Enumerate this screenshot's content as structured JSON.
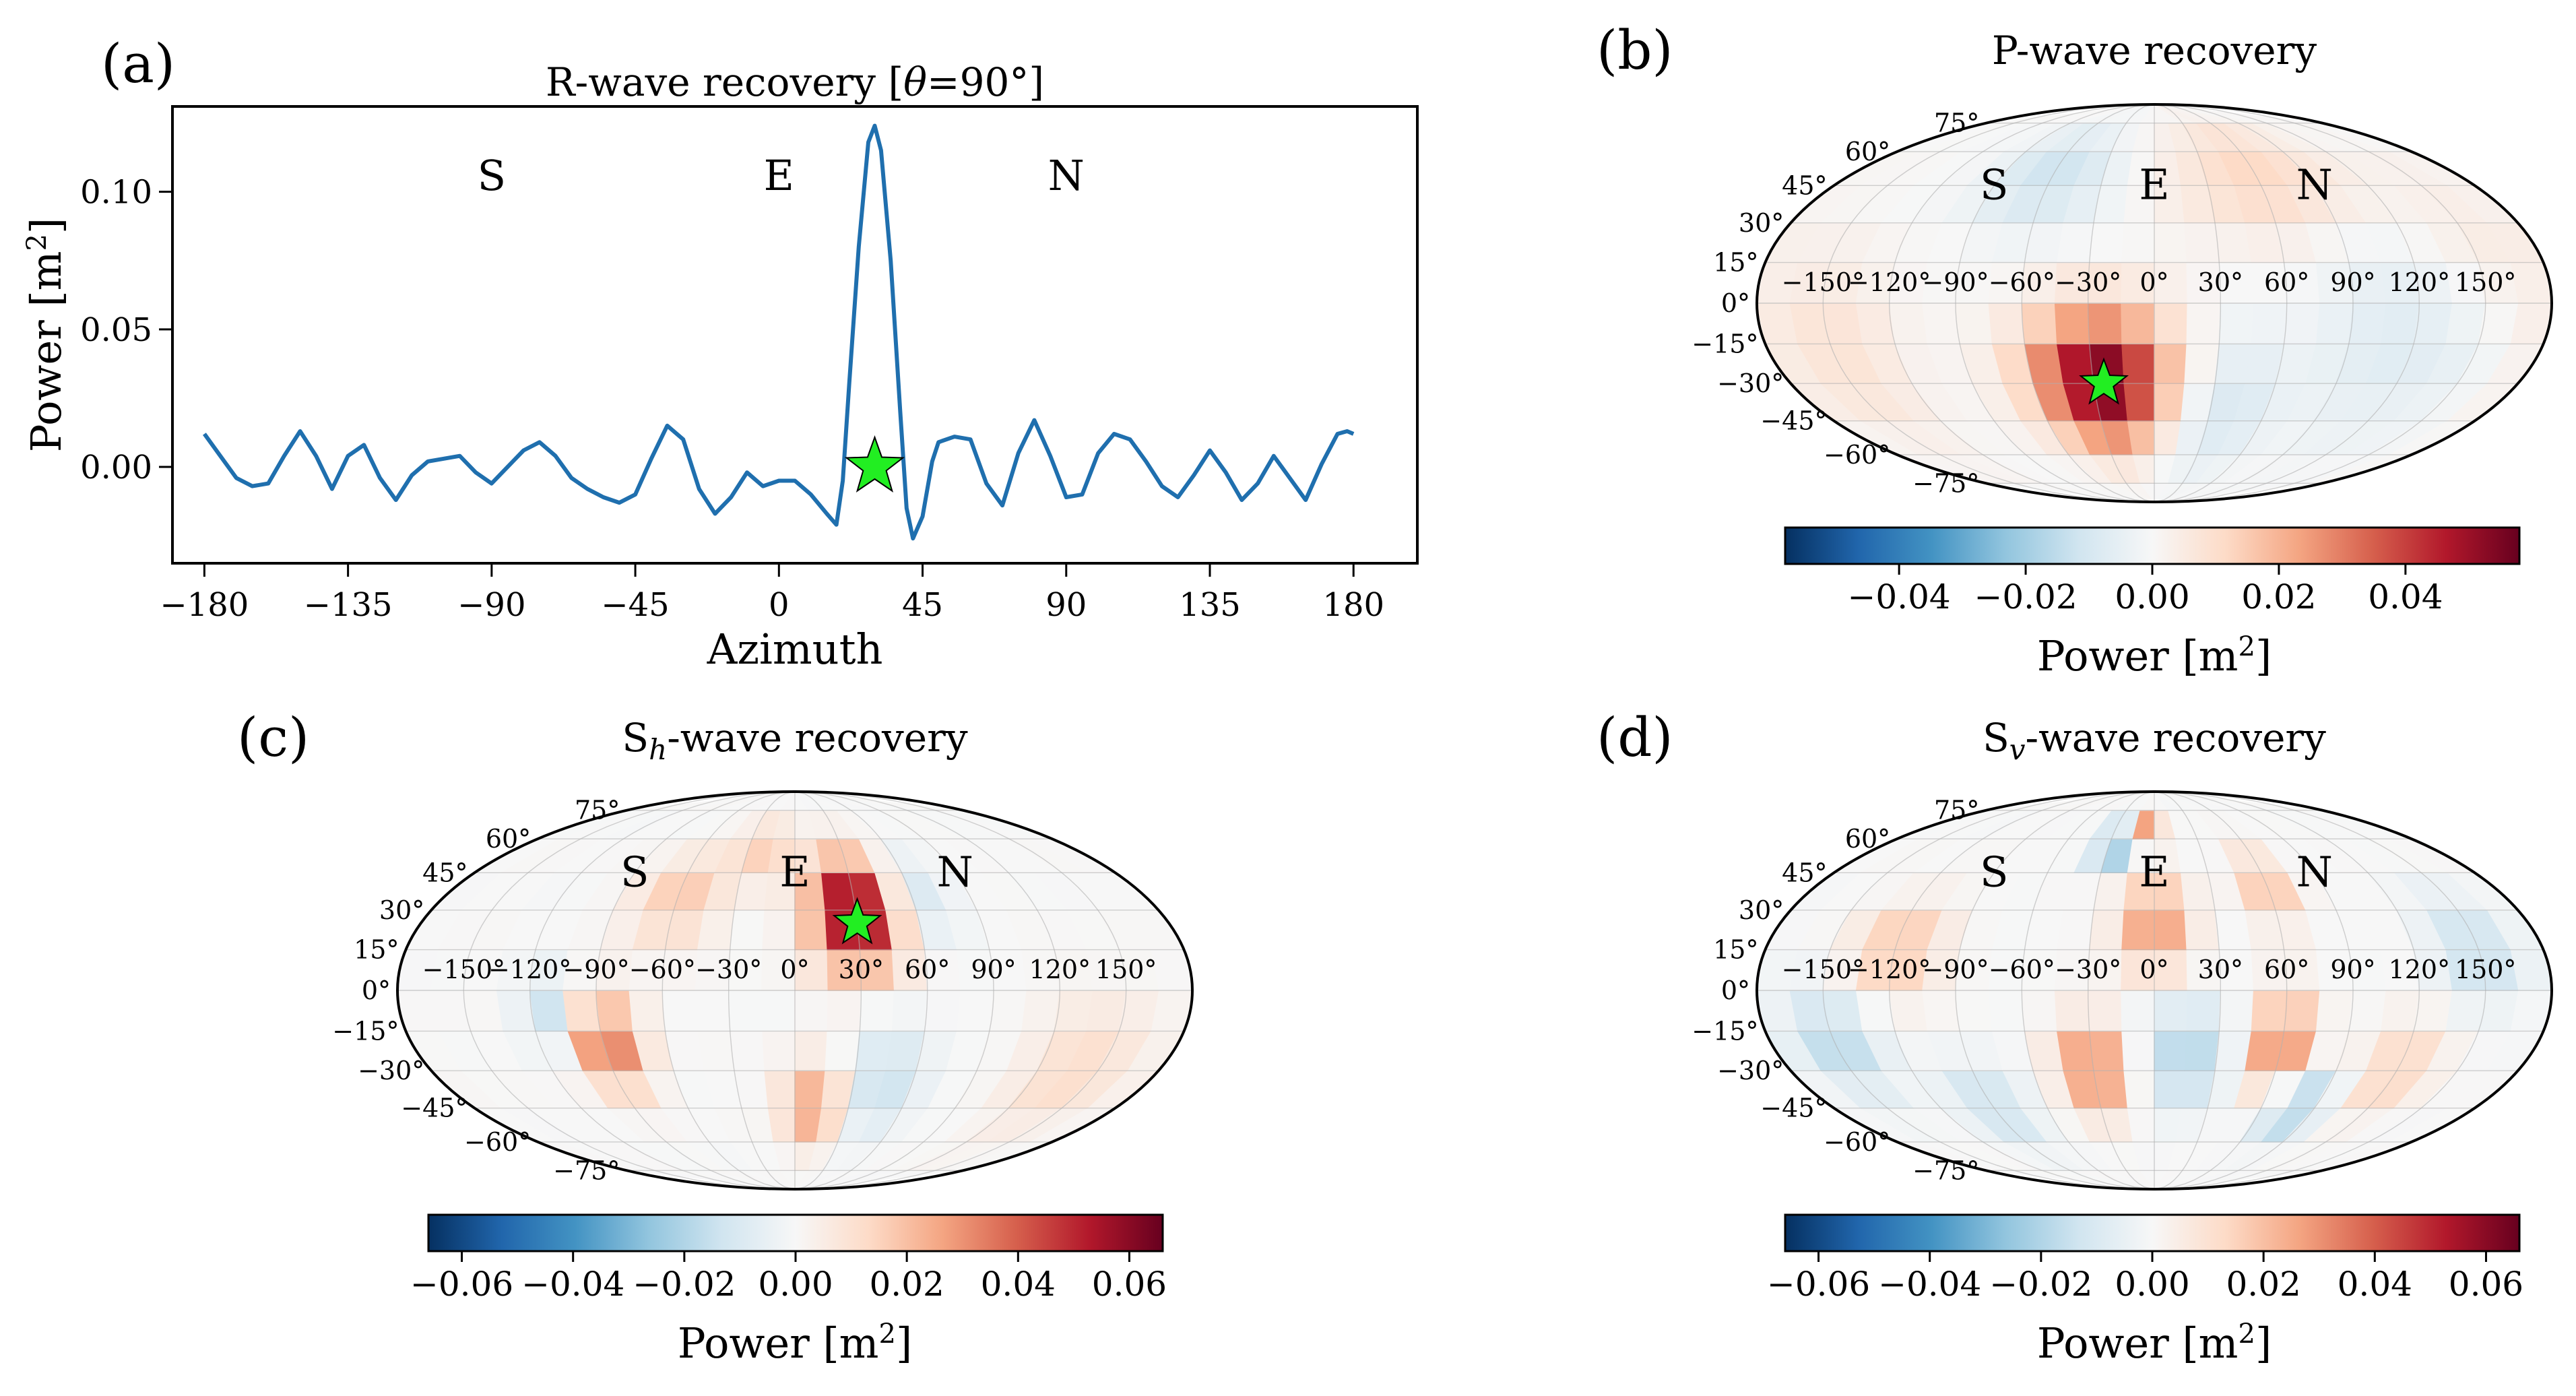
{
  "chart_data": [
    {
      "type": "line",
      "panel": "(a)",
      "title": "R-wave recovery [θ=90°]",
      "xlabel": "Azimuth",
      "ylabel": "Power [m²]",
      "xlim": [
        -190,
        200
      ],
      "ylim": [
        -0.035,
        0.131
      ],
      "xticks": [
        "−180",
        "−135",
        "−90",
        "−45",
        "0",
        "45",
        "90",
        "135",
        "180"
      ],
      "yticks": [
        "0.00",
        "0.05",
        "0.10"
      ],
      "direction_labels": [
        {
          "label": "S",
          "azimuth": -90
        },
        {
          "label": "E",
          "azimuth": 0
        },
        {
          "label": "N",
          "azimuth": 90
        }
      ],
      "marker": {
        "shape": "star",
        "color": "#22ee22",
        "azimuth": 30,
        "power": 0.0
      },
      "series": [
        {
          "name": "R-wave power",
          "color": "#1f6fae",
          "x": [
            -180,
            -175,
            -170,
            -165,
            -160,
            -155,
            -150,
            -145,
            -140,
            -135,
            -130,
            -125,
            -120,
            -115,
            -110,
            -105,
            -100,
            -95,
            -90,
            -85,
            -80,
            -75,
            -70,
            -65,
            -60,
            -55,
            -50,
            -45,
            -40,
            -35,
            -30,
            -25,
            -20,
            -15,
            -10,
            -5,
            0,
            5,
            10,
            15,
            18,
            20,
            22,
            25,
            28,
            30,
            32,
            35,
            38,
            40,
            42,
            45,
            48,
            50,
            55,
            60,
            65,
            70,
            75,
            80,
            85,
            90,
            95,
            100,
            105,
            110,
            115,
            120,
            125,
            130,
            135,
            140,
            145,
            150,
            155,
            160,
            165,
            170,
            175,
            178,
            180
          ],
          "y": [
            0.012,
            0.004,
            -0.004,
            -0.007,
            -0.006,
            0.004,
            0.013,
            0.004,
            -0.008,
            0.004,
            0.008,
            -0.004,
            -0.012,
            -0.003,
            0.002,
            0.003,
            0.004,
            -0.002,
            -0.006,
            0.0,
            0.006,
            0.009,
            0.004,
            -0.004,
            -0.008,
            -0.011,
            -0.013,
            -0.01,
            0.003,
            0.015,
            0.01,
            -0.008,
            -0.017,
            -0.011,
            -0.002,
            -0.007,
            -0.005,
            -0.005,
            -0.01,
            -0.017,
            -0.021,
            -0.005,
            0.03,
            0.08,
            0.118,
            0.124,
            0.115,
            0.075,
            0.02,
            -0.015,
            -0.026,
            -0.018,
            0.002,
            0.009,
            0.011,
            0.01,
            -0.006,
            -0.014,
            0.005,
            0.017,
            0.004,
            -0.011,
            -0.01,
            0.005,
            0.012,
            0.01,
            0.002,
            -0.007,
            -0.011,
            -0.003,
            0.006,
            -0.002,
            -0.012,
            -0.006,
            0.004,
            -0.004,
            -0.012,
            0.001,
            0.012,
            0.013,
            0.012
          ]
        }
      ]
    },
    {
      "type": "heatmap",
      "panel": "(b)",
      "title": "P-wave recovery",
      "projection": "Mollweide",
      "lon_labels": [
        "−150°",
        "−120°",
        "−90°",
        "−60°",
        "−30°",
        "0°",
        "30°",
        "60°",
        "90°",
        "120°",
        "150°"
      ],
      "lat_labels": [
        "75°",
        "60°",
        "45°",
        "30°",
        "15°",
        "0°",
        "−15°",
        "−30°",
        "−45°",
        "−60°",
        "−75°"
      ],
      "direction_labels": [
        {
          "label": "S",
          "lon": -90
        },
        {
          "label": "E",
          "lon": 0
        },
        {
          "label": "N",
          "lon": 90
        }
      ],
      "marker": {
        "shape": "star",
        "color": "#22ee22",
        "lon": -25,
        "lat": -30
      },
      "colorbar": {
        "label": "Power [m²]",
        "vmin": -0.058,
        "vmax": 0.058,
        "ticks": [
          "−0.04",
          "−0.02",
          "0.00",
          "0.02",
          "0.04"
        ],
        "colormap": "RdBu_r"
      },
      "features": [
        {
          "lon": -25,
          "lat": -30,
          "value": 0.058,
          "sigma_lon": 24,
          "sigma_lat": 18
        },
        {
          "lon": -60,
          "lat": 50,
          "value": -0.012,
          "sigma_lon": 25,
          "sigma_lat": 15
        },
        {
          "lon": 60,
          "lat": 50,
          "value": 0.012,
          "sigma_lon": 35,
          "sigma_lat": 18
        },
        {
          "lon": 30,
          "lat": -40,
          "value": -0.01,
          "sigma_lon": 25,
          "sigma_lat": 20
        },
        {
          "lon": 120,
          "lat": -10,
          "value": -0.008,
          "sigma_lon": 30,
          "sigma_lat": 30
        },
        {
          "lon": -150,
          "lat": -20,
          "value": 0.008,
          "sigma_lon": 25,
          "sigma_lat": 25
        },
        {
          "lon": 150,
          "lat": 20,
          "value": 0.006,
          "sigma_lon": 25,
          "sigma_lat": 25
        }
      ]
    },
    {
      "type": "heatmap",
      "panel": "(c)",
      "title": "Sₕ-wave recovery",
      "projection": "Mollweide",
      "lon_labels": [
        "−150°",
        "−120°",
        "−90°",
        "−60°",
        "−30°",
        "0°",
        "30°",
        "60°",
        "90°",
        "120°",
        "150°"
      ],
      "lat_labels": [
        "75°",
        "60°",
        "45°",
        "30°",
        "15°",
        "0°",
        "−15°",
        "−30°",
        "−45°",
        "−60°",
        "−75°"
      ],
      "direction_labels": [
        {
          "label": "S",
          "lon": -90
        },
        {
          "label": "E",
          "lon": 0
        },
        {
          "label": "N",
          "lon": 90
        }
      ],
      "marker": {
        "shape": "star",
        "color": "#22ee22",
        "lon": 30,
        "lat": 25
      },
      "colorbar": {
        "label": "Power [m²]",
        "vmin": -0.066,
        "vmax": 0.066,
        "ticks": [
          "−0.06",
          "−0.04",
          "−0.02",
          "0.00",
          "0.02",
          "0.04",
          "0.06"
        ],
        "colormap": "RdBu_r"
      },
      "features": [
        {
          "lon": 30,
          "lat": 30,
          "value": 0.066,
          "sigma_lon": 15,
          "sigma_lat": 15
        },
        {
          "lon": -90,
          "lat": -20,
          "value": 0.038,
          "sigma_lon": 12,
          "sigma_lat": 12
        },
        {
          "lon": -110,
          "lat": -10,
          "value": -0.018,
          "sigma_lon": 10,
          "sigma_lat": 10
        },
        {
          "lon": 60,
          "lat": 35,
          "value": -0.015,
          "sigma_lon": 12,
          "sigma_lat": 12
        },
        {
          "lon": 10,
          "lat": -45,
          "value": 0.028,
          "sigma_lon": 12,
          "sigma_lat": 12
        },
        {
          "lon": -60,
          "lat": 35,
          "value": 0.018,
          "sigma_lon": 15,
          "sigma_lat": 12
        },
        {
          "lon": 45,
          "lat": -35,
          "value": -0.014,
          "sigma_lon": 15,
          "sigma_lat": 15
        },
        {
          "lon": -20,
          "lat": 55,
          "value": 0.016,
          "sigma_lon": 14,
          "sigma_lat": 10
        },
        {
          "lon": 140,
          "lat": -30,
          "value": 0.012,
          "sigma_lon": 20,
          "sigma_lat": 18
        }
      ]
    },
    {
      "type": "heatmap",
      "panel": "(d)",
      "title": "Sᵥ-wave recovery",
      "projection": "Mollweide",
      "lon_labels": [
        "−150°",
        "−120°",
        "−90°",
        "−60°",
        "−30°",
        "0°",
        "30°",
        "60°",
        "90°",
        "120°",
        "150°"
      ],
      "lat_labels": [
        "75°",
        "60°",
        "45°",
        "30°",
        "15°",
        "0°",
        "−15°",
        "−30°",
        "−45°",
        "−60°",
        "−75°"
      ],
      "direction_labels": [
        {
          "label": "S",
          "lon": -90
        },
        {
          "label": "E",
          "lon": 0
        },
        {
          "label": "N",
          "lon": 90
        }
      ],
      "colorbar": {
        "label": "Power [m²]",
        "vmin": -0.066,
        "vmax": 0.066,
        "ticks": [
          "−0.06",
          "−0.04",
          "−0.02",
          "0.00",
          "0.02",
          "0.04",
          "0.06"
        ],
        "colormap": "RdBu_r"
      },
      "features": [
        {
          "lon": -25,
          "lat": 60,
          "value": -0.04,
          "sigma_lon": 10,
          "sigma_lat": 7
        },
        {
          "lon": -10,
          "lat": 65,
          "value": 0.035,
          "sigma_lon": 10,
          "sigma_lat": 6
        },
        {
          "lon": 0,
          "lat": 25,
          "value": 0.03,
          "sigma_lon": 12,
          "sigma_lat": 12
        },
        {
          "lon": -30,
          "lat": -30,
          "value": 0.035,
          "sigma_lon": 12,
          "sigma_lat": 12
        },
        {
          "lon": 60,
          "lat": -20,
          "value": 0.035,
          "sigma_lon": 10,
          "sigma_lat": 12
        },
        {
          "lon": 60,
          "lat": 40,
          "value": 0.02,
          "sigma_lon": 10,
          "sigma_lat": 10
        },
        {
          "lon": 15,
          "lat": -25,
          "value": -0.02,
          "sigma_lon": 14,
          "sigma_lat": 14
        },
        {
          "lon": 80,
          "lat": -45,
          "value": -0.022,
          "sigma_lon": 12,
          "sigma_lat": 10
        },
        {
          "lon": -120,
          "lat": 15,
          "value": 0.02,
          "sigma_lon": 14,
          "sigma_lat": 12
        },
        {
          "lon": -150,
          "lat": -20,
          "value": -0.018,
          "sigma_lon": 14,
          "sigma_lat": 14
        },
        {
          "lon": 150,
          "lat": 15,
          "value": -0.015,
          "sigma_lon": 14,
          "sigma_lat": 14
        },
        {
          "lon": -90,
          "lat": -45,
          "value": -0.015,
          "sigma_lon": 14,
          "sigma_lat": 12
        },
        {
          "lon": 120,
          "lat": -30,
          "value": 0.015,
          "sigma_lon": 14,
          "sigma_lat": 12
        }
      ]
    }
  ]
}
